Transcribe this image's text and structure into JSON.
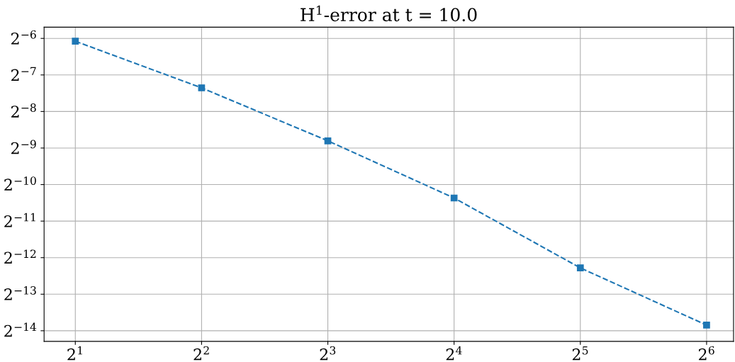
{
  "chart_data": {
    "type": "line",
    "title": "H$^{1}$-error at t = 10.0",
    "x": [
      2,
      4,
      8,
      16,
      32,
      64
    ],
    "series": [
      {
        "color": "#1f77b4",
        "values": [
          0.01481,
          0.006117,
          0.002239,
          0.000757,
          0.000201,
          6.79e-05
        ]
      }
    ],
    "log": "xy",
    "marker": "square",
    "line_style": "dashed",
    "grid": true,
    "xlim": [
      1.685,
      74.2
    ],
    "ylim": [
      4.99e-05,
      0.01934
    ],
    "xticks": [
      {
        "value": 2,
        "label": "2$^{1}$"
      },
      {
        "value": 4,
        "label": "2$^{2}$"
      },
      {
        "value": 8,
        "label": "2$^{3}$"
      },
      {
        "value": 16,
        "label": "2$^{4}$"
      },
      {
        "value": 32,
        "label": "2$^{5}$"
      },
      {
        "value": 64,
        "label": "2$^{6}$"
      }
    ],
    "yticks": [
      {
        "value": 0.015625,
        "label": "2$^{−6}$"
      },
      {
        "value": 0.0078125,
        "label": "2$^{−7}$"
      },
      {
        "value": 0.00390625,
        "label": "2$^{−8}$"
      },
      {
        "value": 0.001953125,
        "label": "2$^{−9}$"
      },
      {
        "value": 0.0009765625,
        "label": "2$^{−10}$"
      },
      {
        "value": 0.00048828125,
        "label": "2$^{−11}$"
      },
      {
        "value": 0.000244140625,
        "label": "2$^{−12}$"
      },
      {
        "value": 0.0001220703125,
        "label": "2$^{−13}$"
      },
      {
        "value": 6.103515625e-05,
        "label": "2$^{−14}$"
      }
    ]
  }
}
